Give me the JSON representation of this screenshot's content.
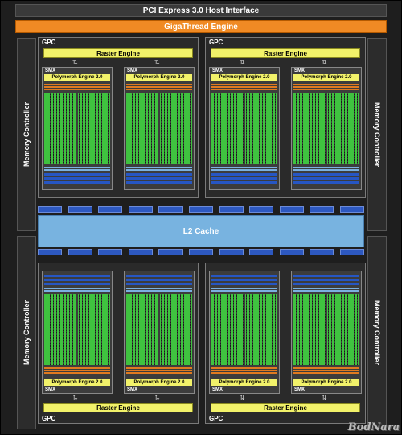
{
  "pcie": "PCI Express 3.0 Host Interface",
  "gigathread": "GigaThread Engine",
  "memory_controller": "Memory Controller",
  "gpc_label": "GPC",
  "raster_engine": "Raster Engine",
  "smx_label": "SMX",
  "polymorph_engine": "Polymorph Engine 2.0",
  "l2_cache": "L2 Cache",
  "watermark": "BodNara"
}
